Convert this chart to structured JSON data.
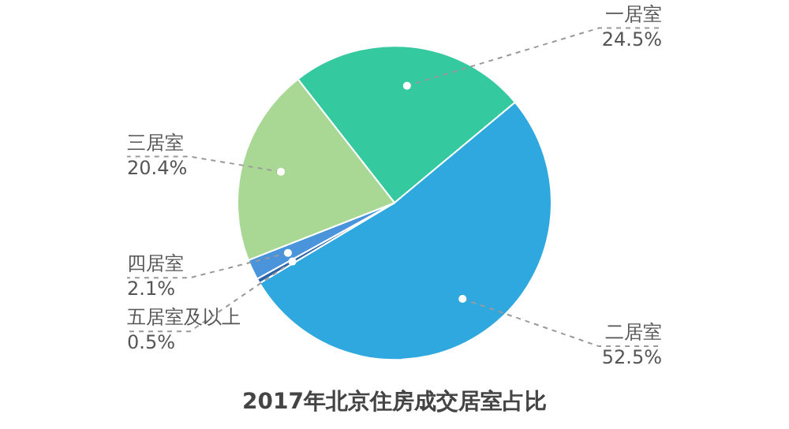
{
  "chart_data": {
    "type": "pie",
    "title": "2017年北京住房成交居室占比",
    "categories": [
      "一居室",
      "二居室",
      "五居室及以上",
      "四居室",
      "三居室"
    ],
    "values": [
      24.5,
      52.5,
      0.5,
      2.1,
      20.4
    ],
    "value_labels": [
      "24.5%",
      "52.5%",
      "0.5%",
      "2.1%",
      "20.4%"
    ],
    "colors": [
      "#35c9a0",
      "#2ea8df",
      "#2b63a8",
      "#4a94dc",
      "#a9d895"
    ],
    "legend": false
  }
}
